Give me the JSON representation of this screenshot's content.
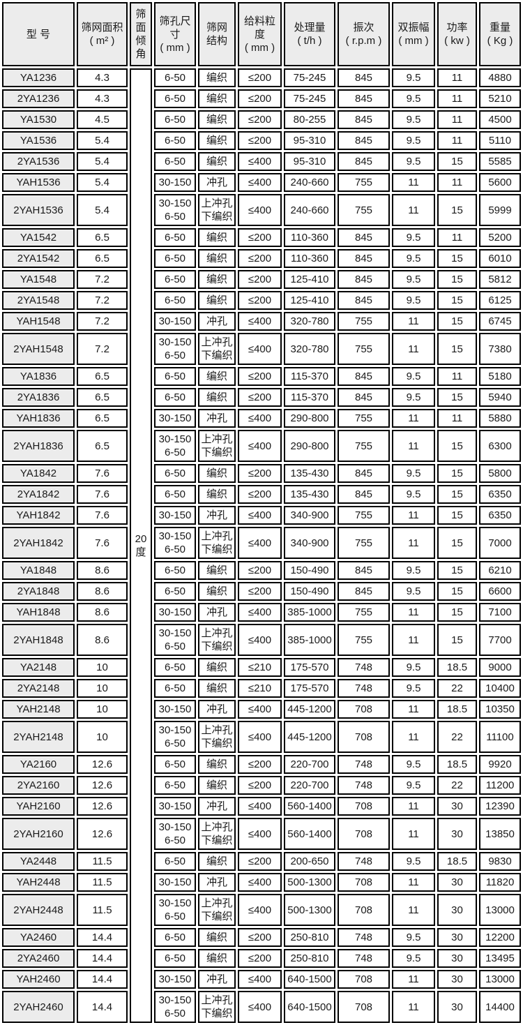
{
  "table": {
    "headers": [
      "型  号",
      "筛网面积\n( m² )",
      "筛面\n倾角",
      "筛孔尺\n寸\n( mm )",
      "筛网\n结构",
      "给料粒\n度\n( mm )",
      "处理量\n( t/h )",
      "振次\n( r.p.m )",
      "双振幅\n( mm )",
      "功率\n( kw )",
      "重量\n( Kg )"
    ],
    "incline": "20\n度",
    "rows": [
      {
        "model": "YA1236",
        "area": "4.3",
        "hole": "6-50",
        "structure": "编织",
        "feed": "≤200",
        "capacity": "75-245",
        "rpm": "845",
        "amplitude": "9.5",
        "power": "11",
        "weight": "4880"
      },
      {
        "model": "2YA1236",
        "area": "4.3",
        "hole": "6-50",
        "structure": "编织",
        "feed": "≤200",
        "capacity": "75-245",
        "rpm": "845",
        "amplitude": "9.5",
        "power": "11",
        "weight": "5210"
      },
      {
        "model": "YA1530",
        "area": "4.5",
        "hole": "6-50",
        "structure": "编织",
        "feed": "≤200",
        "capacity": "80-255",
        "rpm": "845",
        "amplitude": "9.5",
        "power": "11",
        "weight": "4500"
      },
      {
        "model": "YA1536",
        "area": "5.4",
        "hole": "6-50",
        "structure": "编织",
        "feed": "≤200",
        "capacity": "95-310",
        "rpm": "845",
        "amplitude": "9.5",
        "power": "11",
        "weight": "5110"
      },
      {
        "model": "2YA1536",
        "area": "5.4",
        "hole": "6-50",
        "structure": "编织",
        "feed": "≤400",
        "capacity": "95-310",
        "rpm": "845",
        "amplitude": "9.5",
        "power": "15",
        "weight": "5585"
      },
      {
        "model": "YAH1536",
        "area": "5.4",
        "hole": "30-150",
        "structure": "冲孔",
        "feed": "≤400",
        "capacity": "240-660",
        "rpm": "755",
        "amplitude": "11",
        "power": "11",
        "weight": "5600"
      },
      {
        "model": "2YAH1536",
        "area": "5.4",
        "hole": "30-150\n6-50",
        "structure": "上冲孔\n下编织",
        "feed": "≤400",
        "capacity": "240-660",
        "rpm": "755",
        "amplitude": "11",
        "power": "15",
        "weight": "5999"
      },
      {
        "model": "YA1542",
        "area": "6.5",
        "hole": "6-50",
        "structure": "编织",
        "feed": "≤200",
        "capacity": "110-360",
        "rpm": "845",
        "amplitude": "9.5",
        "power": "11",
        "weight": "5200"
      },
      {
        "model": "2YA1542",
        "area": "6.5",
        "hole": "6-50",
        "structure": "编织",
        "feed": "≤200",
        "capacity": "110-360",
        "rpm": "845",
        "amplitude": "9.5",
        "power": "15",
        "weight": "6010"
      },
      {
        "model": "YA1548",
        "area": "7.2",
        "hole": "6-50",
        "structure": "编织",
        "feed": "≤200",
        "capacity": "125-410",
        "rpm": "845",
        "amplitude": "9.5",
        "power": "15",
        "weight": "5812"
      },
      {
        "model": "2YA1548",
        "area": "7.2",
        "hole": "6-50",
        "structure": "编织",
        "feed": "≤200",
        "capacity": "125-410",
        "rpm": "845",
        "amplitude": "9.5",
        "power": "15",
        "weight": "6125"
      },
      {
        "model": "YAH1548",
        "area": "7.2",
        "hole": "30-150",
        "structure": "冲孔",
        "feed": "≤400",
        "capacity": "320-780",
        "rpm": "755",
        "amplitude": "11",
        "power": "15",
        "weight": "6745"
      },
      {
        "model": "2YAH1548",
        "area": "7.2",
        "hole": "30-150\n6-50",
        "structure": "上冲孔\n下编织",
        "feed": "≤400",
        "capacity": "320-780",
        "rpm": "755",
        "amplitude": "11",
        "power": "15",
        "weight": "7380"
      },
      {
        "model": "YA1836",
        "area": "6.5",
        "hole": "6-50",
        "structure": "编织",
        "feed": "≤200",
        "capacity": "115-370",
        "rpm": "845",
        "amplitude": "9.5",
        "power": "11",
        "weight": "5180"
      },
      {
        "model": "2YA1836",
        "area": "6.5",
        "hole": "6-50",
        "structure": "编织",
        "feed": "≤200",
        "capacity": "115-370",
        "rpm": "845",
        "amplitude": "9.5",
        "power": "15",
        "weight": "5940"
      },
      {
        "model": "YAH1836",
        "area": "6.5",
        "hole": "30-150",
        "structure": "冲孔",
        "feed": "≤400",
        "capacity": "290-800",
        "rpm": "755",
        "amplitude": "11",
        "power": "11",
        "weight": "5880"
      },
      {
        "model": "2YAH1836",
        "area": "6.5",
        "hole": "30-150\n6-50",
        "structure": "上冲孔\n下编织",
        "feed": "≤400",
        "capacity": "290-800",
        "rpm": "755",
        "amplitude": "11",
        "power": "15",
        "weight": "6300"
      },
      {
        "model": "YA1842",
        "area": "7.6",
        "hole": "6-50",
        "structure": "编织",
        "feed": "≤200",
        "capacity": "135-430",
        "rpm": "845",
        "amplitude": "9.5",
        "power": "15",
        "weight": "5800"
      },
      {
        "model": "2YA1842",
        "area": "7.6",
        "hole": "6-50",
        "structure": "编织",
        "feed": "≤200",
        "capacity": "135-430",
        "rpm": "845",
        "amplitude": "9.5",
        "power": "15",
        "weight": "6350"
      },
      {
        "model": "YAH1842",
        "area": "7.6",
        "hole": "30-150",
        "structure": "冲孔",
        "feed": "≤400",
        "capacity": "340-900",
        "rpm": "755",
        "amplitude": "11",
        "power": "15",
        "weight": "6350"
      },
      {
        "model": "2YAH1842",
        "area": "7.6",
        "hole": "30-150\n6-50",
        "structure": "上冲孔\n下编织",
        "feed": "≤400",
        "capacity": "340-900",
        "rpm": "755",
        "amplitude": "11",
        "power": "15",
        "weight": "7000"
      },
      {
        "model": "YA1848",
        "area": "8.6",
        "hole": "6-50",
        "structure": "编织",
        "feed": "≤200",
        "capacity": "150-490",
        "rpm": "845",
        "amplitude": "9.5",
        "power": "15",
        "weight": "6210"
      },
      {
        "model": "2YA1848",
        "area": "8.6",
        "hole": "6-50",
        "structure": "编织",
        "feed": "≤200",
        "capacity": "150-490",
        "rpm": "845",
        "amplitude": "9.5",
        "power": "15",
        "weight": "6600"
      },
      {
        "model": "YAH1848",
        "area": "8.6",
        "hole": "30-150",
        "structure": "冲孔",
        "feed": "≤400",
        "capacity": "385-1000",
        "rpm": "755",
        "amplitude": "11",
        "power": "15",
        "weight": "7100"
      },
      {
        "model": "2YAH1848",
        "area": "8.6",
        "hole": "30-150\n6-50",
        "structure": "上冲孔\n下编织",
        "feed": "≤400",
        "capacity": "385-1000",
        "rpm": "755",
        "amplitude": "11",
        "power": "15",
        "weight": "7700"
      },
      {
        "model": "YA2148",
        "area": "10",
        "hole": "6-50",
        "structure": "编织",
        "feed": "≤210",
        "capacity": "175-570",
        "rpm": "748",
        "amplitude": "9.5",
        "power": "18.5",
        "weight": "9000"
      },
      {
        "model": "2YA2148",
        "area": "10",
        "hole": "6-50",
        "structure": "编织",
        "feed": "≤210",
        "capacity": "175-570",
        "rpm": "748",
        "amplitude": "9.5",
        "power": "22",
        "weight": "10400"
      },
      {
        "model": "YAH2148",
        "area": "10",
        "hole": "30-150",
        "structure": "冲孔",
        "feed": "≤400",
        "capacity": "445-1200",
        "rpm": "708",
        "amplitude": "11",
        "power": "18.5",
        "weight": "10350"
      },
      {
        "model": "2YAH2148",
        "area": "10",
        "hole": "30-150\n6-50",
        "structure": "上冲孔\n下编织",
        "feed": "≤400",
        "capacity": "445-1200",
        "rpm": "708",
        "amplitude": "11",
        "power": "22",
        "weight": "11100"
      },
      {
        "model": "YA2160",
        "area": "12.6",
        "hole": "6-50",
        "structure": "编织",
        "feed": "≤200",
        "capacity": "220-700",
        "rpm": "748",
        "amplitude": "9.5",
        "power": "18.5",
        "weight": "9920"
      },
      {
        "model": "2YA2160",
        "area": "12.6",
        "hole": "6-50",
        "structure": "编织",
        "feed": "≤200",
        "capacity": "220-700",
        "rpm": "748",
        "amplitude": "9.5",
        "power": "22",
        "weight": "11200"
      },
      {
        "model": "YAH2160",
        "area": "12.6",
        "hole": "30-150",
        "structure": "冲孔",
        "feed": "≤400",
        "capacity": "560-1400",
        "rpm": "708",
        "amplitude": "11",
        "power": "30",
        "weight": "12390"
      },
      {
        "model": "2YAH2160",
        "area": "12.6",
        "hole": "30-150\n6-50",
        "structure": "上冲孔\n下编织",
        "feed": "≤400",
        "capacity": "560-1400",
        "rpm": "708",
        "amplitude": "11",
        "power": "30",
        "weight": "13850"
      },
      {
        "model": "YA2448",
        "area": "11.5",
        "hole": "6-50",
        "structure": "编织",
        "feed": "≤200",
        "capacity": "200-650",
        "rpm": "748",
        "amplitude": "9.5",
        "power": "18.5",
        "weight": "9830"
      },
      {
        "model": "YAH2448",
        "area": "11.5",
        "hole": "30-150",
        "structure": "冲孔",
        "feed": "≤400",
        "capacity": "500-1300",
        "rpm": "708",
        "amplitude": "11",
        "power": "30",
        "weight": "11820"
      },
      {
        "model": "2YAH2448",
        "area": "11.5",
        "hole": "30-150\n6-50",
        "structure": "上冲孔\n下编织",
        "feed": "≤400",
        "capacity": "500-1300",
        "rpm": "708",
        "amplitude": "11",
        "power": "30",
        "weight": "13000"
      },
      {
        "model": "YA2460",
        "area": "14.4",
        "hole": "6-50",
        "structure": "编织",
        "feed": "≤200",
        "capacity": "250-810",
        "rpm": "748",
        "amplitude": "9.5",
        "power": "30",
        "weight": "12200"
      },
      {
        "model": "2YA2460",
        "area": "14.4",
        "hole": "6-50",
        "structure": "编织",
        "feed": "≤200",
        "capacity": "250-810",
        "rpm": "748",
        "amplitude": "9.5",
        "power": "30",
        "weight": "13495"
      },
      {
        "model": "YAH2460",
        "area": "14.4",
        "hole": "30-150",
        "structure": "冲孔",
        "feed": "≤400",
        "capacity": "640-1500",
        "rpm": "708",
        "amplitude": "11",
        "power": "30",
        "weight": "13000"
      },
      {
        "model": "2YAH2460",
        "area": "14.4",
        "hole": "30-150\n6-50",
        "structure": "上冲孔\n下编织",
        "feed": "≤400",
        "capacity": "640-1500",
        "rpm": "708",
        "amplitude": "11",
        "power": "30",
        "weight": "14400"
      }
    ]
  },
  "colors": {
    "border": "#000000",
    "header_bg": "#ececec",
    "model_column_bg": "#ececec",
    "text": "#1a1a1a"
  }
}
